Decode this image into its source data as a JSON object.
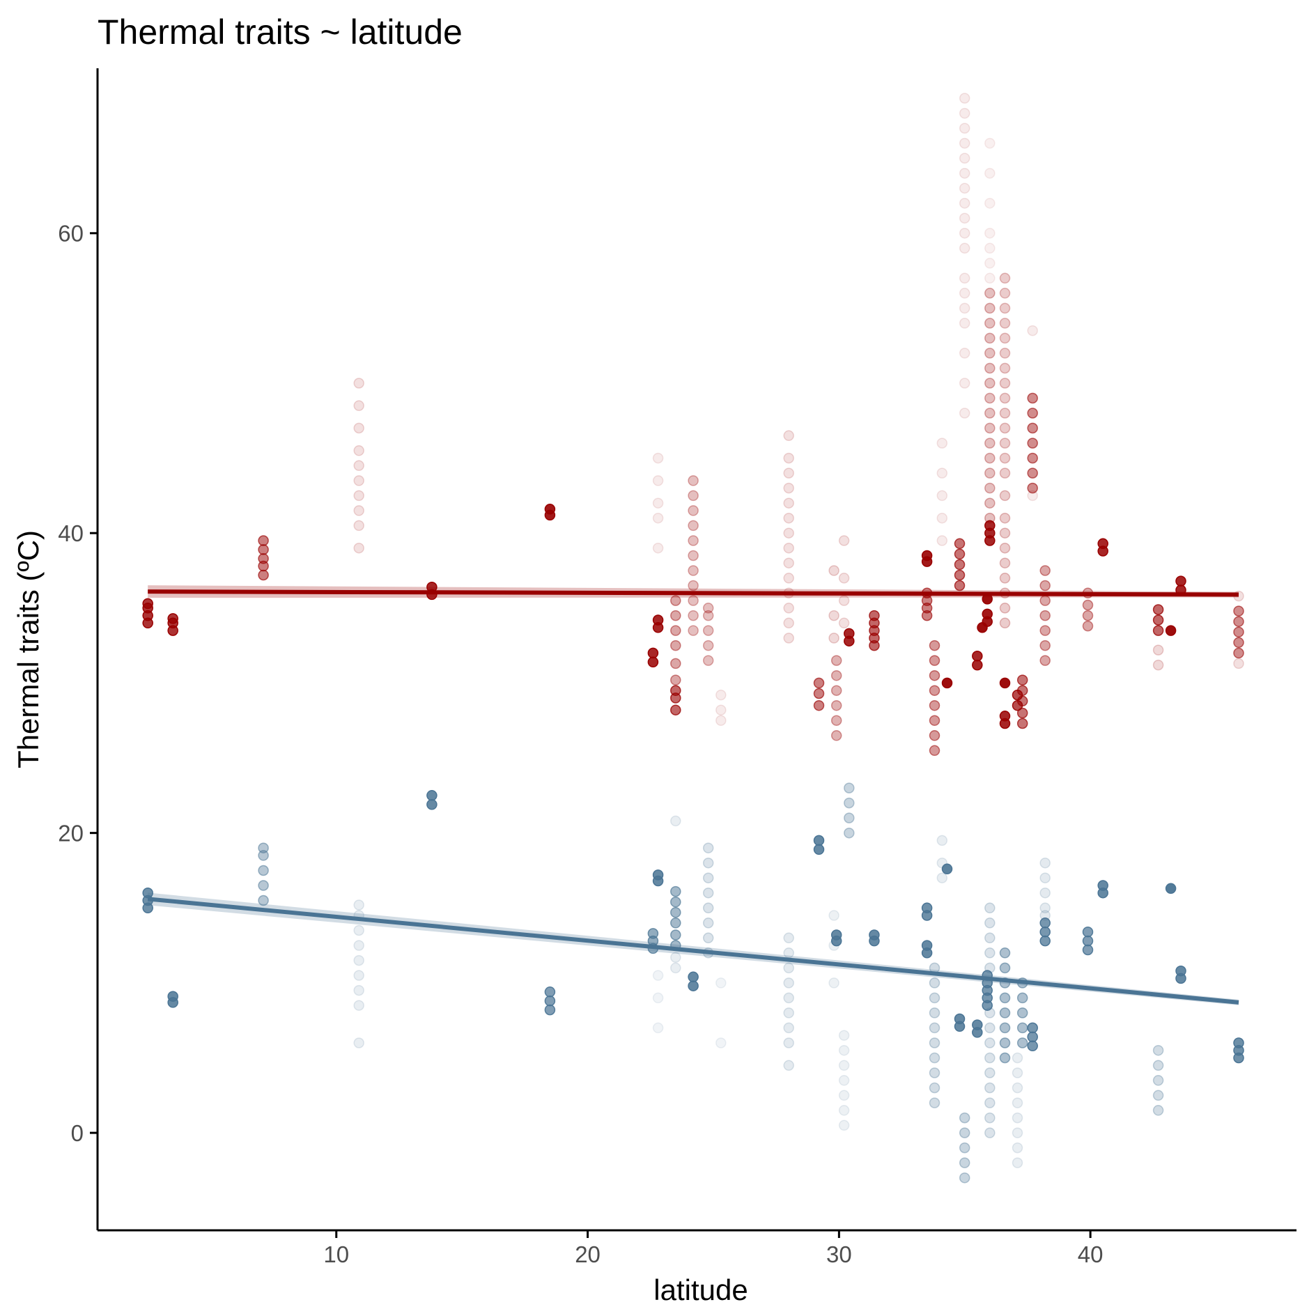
{
  "chart_data": {
    "type": "scatter",
    "title": "Thermal traits ~ latitude",
    "xlabel": "latitude",
    "ylabel": "Thermal traits (ºC)",
    "xlim": [
      0.5,
      48.2
    ],
    "ylim": [
      -6.5,
      71
    ],
    "xticks": [
      10,
      20,
      30,
      40
    ],
    "yticks": [
      0,
      20,
      40,
      60
    ],
    "grid": false,
    "legend": "none",
    "colors": {
      "upper": "#990000",
      "lower": "#4a7494"
    },
    "series": [
      {
        "key": "upper",
        "color": "#990000",
        "fit": {
          "x": [
            2.5,
            45.9
          ],
          "y": [
            36.1,
            35.9
          ]
        },
        "points": [
          {
            "x": 2.5,
            "ys": [
              34,
              34.5,
              35,
              35.3
            ],
            "a": 0.8
          },
          {
            "x": 3.5,
            "ys": [
              33.5,
              34,
              34.3
            ],
            "a": 0.8
          },
          {
            "x": 7.1,
            "ys": [
              37.2,
              37.8,
              38.3,
              38.9,
              39.5
            ],
            "a": 0.5
          },
          {
            "x": 10.9,
            "ys": [
              39,
              40.5,
              41.5,
              42.5,
              43.5,
              44.5,
              45.5,
              47,
              48.5,
              50
            ],
            "a": 0.12
          },
          {
            "x": 13.8,
            "ys": [
              35.9,
              36.4
            ],
            "a": 0.85
          },
          {
            "x": 18.5,
            "ys": [
              41.2,
              41.6
            ],
            "a": 0.9
          },
          {
            "x": 22.6,
            "ys": [
              31.4,
              32
            ],
            "a": 0.85
          },
          {
            "x": 22.8,
            "ys": [
              33.7,
              34.2
            ],
            "a": 0.85
          },
          {
            "x": 22.8,
            "ys": [
              39,
              41,
              42,
              43.5,
              45
            ],
            "a": 0.08
          },
          {
            "x": 23.5,
            "ys": [
              28.2,
              29,
              29.5
            ],
            "a": 0.6
          },
          {
            "x": 23.5,
            "ys": [
              30.2,
              31.3,
              32.5,
              33.5,
              34.5,
              35.5
            ],
            "a": 0.35
          },
          {
            "x": 24.2,
            "ys": [
              33.5,
              34.5,
              35.5,
              36.5,
              37.5,
              38.5,
              39.5,
              40.5,
              41.5,
              42.5,
              43.5
            ],
            "a": 0.25
          },
          {
            "x": 24.8,
            "ys": [
              31.5,
              32.5,
              33.5,
              34.5,
              35
            ],
            "a": 0.25
          },
          {
            "x": 25.3,
            "ys": [
              27.5,
              28.2,
              29.2
            ],
            "a": 0.08
          },
          {
            "x": 28.0,
            "ys": [
              33,
              34,
              35,
              36,
              37,
              38,
              39,
              40,
              41,
              42,
              43,
              44,
              45,
              46.5
            ],
            "a": 0.12
          },
          {
            "x": 29.2,
            "ys": [
              28.5,
              29.3,
              30
            ],
            "a": 0.5
          },
          {
            "x": 29.8,
            "ys": [
              33,
              34.5,
              37.5
            ],
            "a": 0.15
          },
          {
            "x": 29.9,
            "ys": [
              26.5,
              27.5,
              28.5,
              29.5,
              30.5,
              31.5
            ],
            "a": 0.3
          },
          {
            "x": 30.2,
            "ys": [
              34,
              35.5,
              37,
              39.5
            ],
            "a": 0.12
          },
          {
            "x": 30.4,
            "ys": [
              32.8,
              33.3
            ],
            "a": 0.85
          },
          {
            "x": 31.4,
            "ys": [
              32.5,
              33,
              33.5,
              34,
              34.5
            ],
            "a": 0.6
          },
          {
            "x": 33.5,
            "ys": [
              34.5,
              35,
              35.5,
              36
            ],
            "a": 0.5
          },
          {
            "x": 33.5,
            "ys": [
              38.1,
              38.5
            ],
            "a": 0.9
          },
          {
            "x": 33.8,
            "ys": [
              25.5,
              26.5,
              27.5,
              28.5,
              29.5,
              30.5,
              31.5,
              32.5
            ],
            "a": 0.4
          },
          {
            "x": 34.1,
            "ys": [
              39.5,
              41,
              42.5,
              44,
              46
            ],
            "a": 0.08
          },
          {
            "x": 34.3,
            "ys": [
              30
            ],
            "a": 0.95
          },
          {
            "x": 34.8,
            "ys": [
              36.5,
              37.2,
              37.9,
              38.6,
              39.3
            ],
            "a": 0.55
          },
          {
            "x": 35.0,
            "ys": [
              48,
              50,
              52,
              54,
              55,
              56,
              57,
              59,
              60,
              61,
              62,
              63,
              64,
              65,
              66,
              67,
              68,
              69
            ],
            "a": 0.08
          },
          {
            "x": 35.5,
            "ys": [
              31.2,
              31.8
            ],
            "a": 0.85
          },
          {
            "x": 35.7,
            "ys": [
              33.7
            ],
            "a": 0.95
          },
          {
            "x": 35.9,
            "ys": [
              34.1,
              34.6
            ],
            "a": 0.9
          },
          {
            "x": 35.9,
            "ys": [
              35.6
            ],
            "a": 0.95
          },
          {
            "x": 36.0,
            "ys": [
              39.5,
              40,
              40.5
            ],
            "a": 0.85
          },
          {
            "x": 36.0,
            "ys": [
              41,
              42,
              43,
              44,
              45,
              46,
              47,
              48,
              49,
              50,
              51,
              52,
              53,
              54,
              55,
              56
            ],
            "a": 0.25
          },
          {
            "x": 36.0,
            "ys": [
              57,
              58,
              59,
              60,
              62,
              64,
              66
            ],
            "a": 0.06
          },
          {
            "x": 36.6,
            "ys": [
              30
            ],
            "a": 0.95
          },
          {
            "x": 36.6,
            "ys": [
              27.3,
              27.8
            ],
            "a": 0.85
          },
          {
            "x": 36.6,
            "ys": [
              34,
              35,
              36,
              37,
              38,
              39,
              40
            ],
            "a": 0.2
          },
          {
            "x": 36.6,
            "ys": [
              41,
              42.5,
              44,
              45,
              46,
              47,
              48,
              49,
              50,
              51,
              52,
              53,
              54,
              55,
              56,
              57
            ],
            "a": 0.2
          },
          {
            "x": 37.1,
            "ys": [
              28.5,
              29.2
            ],
            "a": 0.7
          },
          {
            "x": 37.3,
            "ys": [
              27.3,
              28,
              28.8,
              29.5,
              30.2
            ],
            "a": 0.55
          },
          {
            "x": 37.7,
            "ys": [
              43,
              44,
              45,
              46,
              47,
              48,
              49
            ],
            "a": 0.45
          },
          {
            "x": 37.7,
            "ys": [
              42.5,
              53.5
            ],
            "a": 0.08
          },
          {
            "x": 38.2,
            "ys": [
              31.5,
              32.5,
              33.5,
              34.5,
              35.5,
              36.5,
              37.5
            ],
            "a": 0.35
          },
          {
            "x": 39.9,
            "ys": [
              33.8,
              34.5,
              35.2,
              36
            ],
            "a": 0.35
          },
          {
            "x": 40.5,
            "ys": [
              38.8,
              39.3
            ],
            "a": 0.85
          },
          {
            "x": 42.7,
            "ys": [
              33.5,
              34.2,
              34.9
            ],
            "a": 0.6
          },
          {
            "x": 42.7,
            "ys": [
              31.2,
              32.2
            ],
            "a": 0.15
          },
          {
            "x": 43.2,
            "ys": [
              33.5
            ],
            "a": 0.95
          },
          {
            "x": 43.6,
            "ys": [
              36.2,
              36.8
            ],
            "a": 0.85
          },
          {
            "x": 45.9,
            "ys": [
              32,
              32.7,
              33.4,
              34.1,
              34.8
            ],
            "a": 0.45
          },
          {
            "x": 45.9,
            "ys": [
              35.8,
              31.3
            ],
            "a": 0.12
          }
        ]
      },
      {
        "key": "lower",
        "color": "#4a7494",
        "fit": {
          "x": [
            2.5,
            45.9
          ],
          "y": [
            15.6,
            8.7
          ]
        },
        "points": [
          {
            "x": 2.5,
            "ys": [
              15,
              15.5,
              16
            ],
            "a": 0.8
          },
          {
            "x": 3.5,
            "ys": [
              8.7,
              9.1
            ],
            "a": 0.85
          },
          {
            "x": 7.1,
            "ys": [
              15.5,
              16.5,
              17.5,
              18.5,
              19
            ],
            "a": 0.4
          },
          {
            "x": 10.9,
            "ys": [
              6,
              8.5,
              9.5,
              10.5,
              11.5,
              12.5,
              13.5,
              14.5,
              15.2
            ],
            "a": 0.12
          },
          {
            "x": 13.8,
            "ys": [
              21.9,
              22.5
            ],
            "a": 0.85
          },
          {
            "x": 18.5,
            "ys": [
              8.2,
              8.8,
              9.4
            ],
            "a": 0.7
          },
          {
            "x": 22.6,
            "ys": [
              12.3,
              12.8,
              13.3
            ],
            "a": 0.6
          },
          {
            "x": 22.8,
            "ys": [
              16.8,
              17.2
            ],
            "a": 0.85
          },
          {
            "x": 22.8,
            "ys": [
              7,
              9,
              10.5
            ],
            "a": 0.08
          },
          {
            "x": 23.5,
            "ys": [
              12.5,
              13.2,
              14,
              14.7,
              15.4,
              16.1
            ],
            "a": 0.5
          },
          {
            "x": 23.5,
            "ys": [
              11,
              11.7,
              20.8
            ],
            "a": 0.12
          },
          {
            "x": 24.2,
            "ys": [
              9.8,
              10.4
            ],
            "a": 0.85
          },
          {
            "x": 24.8,
            "ys": [
              12,
              13,
              14,
              15,
              16,
              17,
              18,
              19
            ],
            "a": 0.2
          },
          {
            "x": 25.3,
            "ys": [
              6,
              10
            ],
            "a": 0.08
          },
          {
            "x": 28.0,
            "ys": [
              4.5,
              6,
              7,
              8,
              9,
              10,
              11,
              12,
              13
            ],
            "a": 0.15
          },
          {
            "x": 29.2,
            "ys": [
              18.9,
              19.5
            ],
            "a": 0.85
          },
          {
            "x": 29.8,
            "ys": [
              10,
              12.5,
              14.5
            ],
            "a": 0.1
          },
          {
            "x": 29.9,
            "ys": [
              12.8,
              13.2
            ],
            "a": 0.85
          },
          {
            "x": 30.2,
            "ys": [
              0.5,
              1.5,
              2.5,
              3.5,
              4.5,
              5.5,
              6.5
            ],
            "a": 0.1
          },
          {
            "x": 30.4,
            "ys": [
              20,
              21,
              22,
              23
            ],
            "a": 0.3
          },
          {
            "x": 31.4,
            "ys": [
              12.8,
              13.2
            ],
            "a": 0.85
          },
          {
            "x": 33.5,
            "ys": [
              12,
              12.5
            ],
            "a": 0.85
          },
          {
            "x": 33.5,
            "ys": [
              14.5,
              15
            ],
            "a": 0.8
          },
          {
            "x": 33.8,
            "ys": [
              2,
              3,
              4,
              5,
              6,
              7,
              8,
              9,
              10,
              11
            ],
            "a": 0.25
          },
          {
            "x": 34.1,
            "ys": [
              17,
              18,
              19.5
            ],
            "a": 0.12
          },
          {
            "x": 34.3,
            "ys": [
              17.6
            ],
            "a": 0.9
          },
          {
            "x": 34.8,
            "ys": [
              7.1,
              7.6
            ],
            "a": 0.85
          },
          {
            "x": 35.0,
            "ys": [
              -3,
              -2,
              -1,
              0,
              1
            ],
            "a": 0.3
          },
          {
            "x": 35.5,
            "ys": [
              6.7,
              7.2
            ],
            "a": 0.85
          },
          {
            "x": 35.9,
            "ys": [
              8.5,
              9,
              9.5,
              10,
              10.5
            ],
            "a": 0.75
          },
          {
            "x": 36.0,
            "ys": [
              0,
              1,
              2,
              3,
              4,
              5,
              6,
              7,
              8,
              11,
              12,
              13,
              14,
              15
            ],
            "a": 0.2
          },
          {
            "x": 36.6,
            "ys": [
              5,
              6,
              7,
              8,
              9,
              10,
              11,
              12
            ],
            "a": 0.45
          },
          {
            "x": 37.1,
            "ys": [
              -2,
              -1,
              0,
              1,
              2,
              3,
              4,
              5
            ],
            "a": 0.12
          },
          {
            "x": 37.3,
            "ys": [
              6,
              7,
              8,
              9,
              10
            ],
            "a": 0.45
          },
          {
            "x": 37.7,
            "ys": [
              5.8,
              6.4,
              7
            ],
            "a": 0.75
          },
          {
            "x": 38.2,
            "ys": [
              12.8,
              13.4,
              14
            ],
            "a": 0.75
          },
          {
            "x": 38.2,
            "ys": [
              15,
              16,
              17,
              18,
              14.5
            ],
            "a": 0.15
          },
          {
            "x": 39.9,
            "ys": [
              12.2,
              12.8,
              13.4
            ],
            "a": 0.7
          },
          {
            "x": 40.5,
            "ys": [
              16,
              16.5
            ],
            "a": 0.85
          },
          {
            "x": 42.7,
            "ys": [
              1.5,
              2.5,
              3.5,
              4.5,
              5.5
            ],
            "a": 0.25
          },
          {
            "x": 43.2,
            "ys": [
              16.3
            ],
            "a": 0.95
          },
          {
            "x": 43.6,
            "ys": [
              10.3,
              10.8
            ],
            "a": 0.85
          },
          {
            "x": 45.9,
            "ys": [
              5,
              5.5,
              6
            ],
            "a": 0.8
          }
        ]
      }
    ]
  }
}
